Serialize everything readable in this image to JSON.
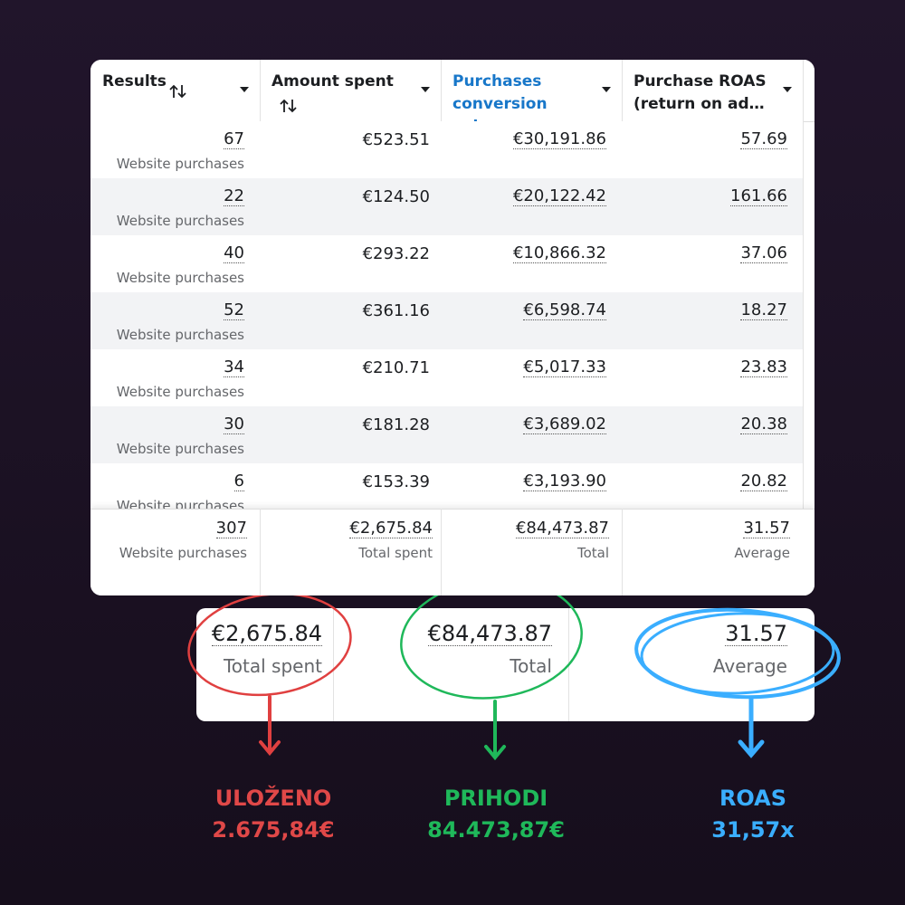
{
  "table": {
    "headers": [
      "Results",
      "Amount spent",
      "Purchases conversion val…",
      "Purchase ROAS (return on ad…"
    ],
    "rows": [
      [
        "67",
        "Website purchases",
        "€523.51",
        "€30,191.86",
        "57.69"
      ],
      [
        "22",
        "Website purchases",
        "€124.50",
        "€20,122.42",
        "161.66"
      ],
      [
        "40",
        "Website purchases",
        "€293.22",
        "€10,866.32",
        "37.06"
      ],
      [
        "52",
        "Website purchases",
        "€361.16",
        "€6,598.74",
        "18.27"
      ],
      [
        "34",
        "Website purchases",
        "€210.71",
        "€5,017.33",
        "23.83"
      ],
      [
        "30",
        "Website purchases",
        "€181.28",
        "€3,689.02",
        "20.38"
      ],
      [
        "6",
        "Website purchases",
        "€153.39",
        "€3,193.90",
        "20.82"
      ]
    ],
    "totals": [
      "307",
      "Website purchases",
      "€2,675.84",
      "Total spent",
      "€84,473.87",
      "Total",
      "31.57",
      "Average"
    ]
  },
  "zoom": [
    "€2,675.84",
    "Total spent",
    "€84,473.87",
    "Total",
    "31.57",
    "Average"
  ],
  "annotations": [
    {
      "title": "ULOŽENO",
      "value": "2.675,84€"
    },
    {
      "title": "PRIHODI",
      "value": "84.473,87€"
    },
    {
      "title": "ROAS",
      "value": "31,57x"
    }
  ]
}
